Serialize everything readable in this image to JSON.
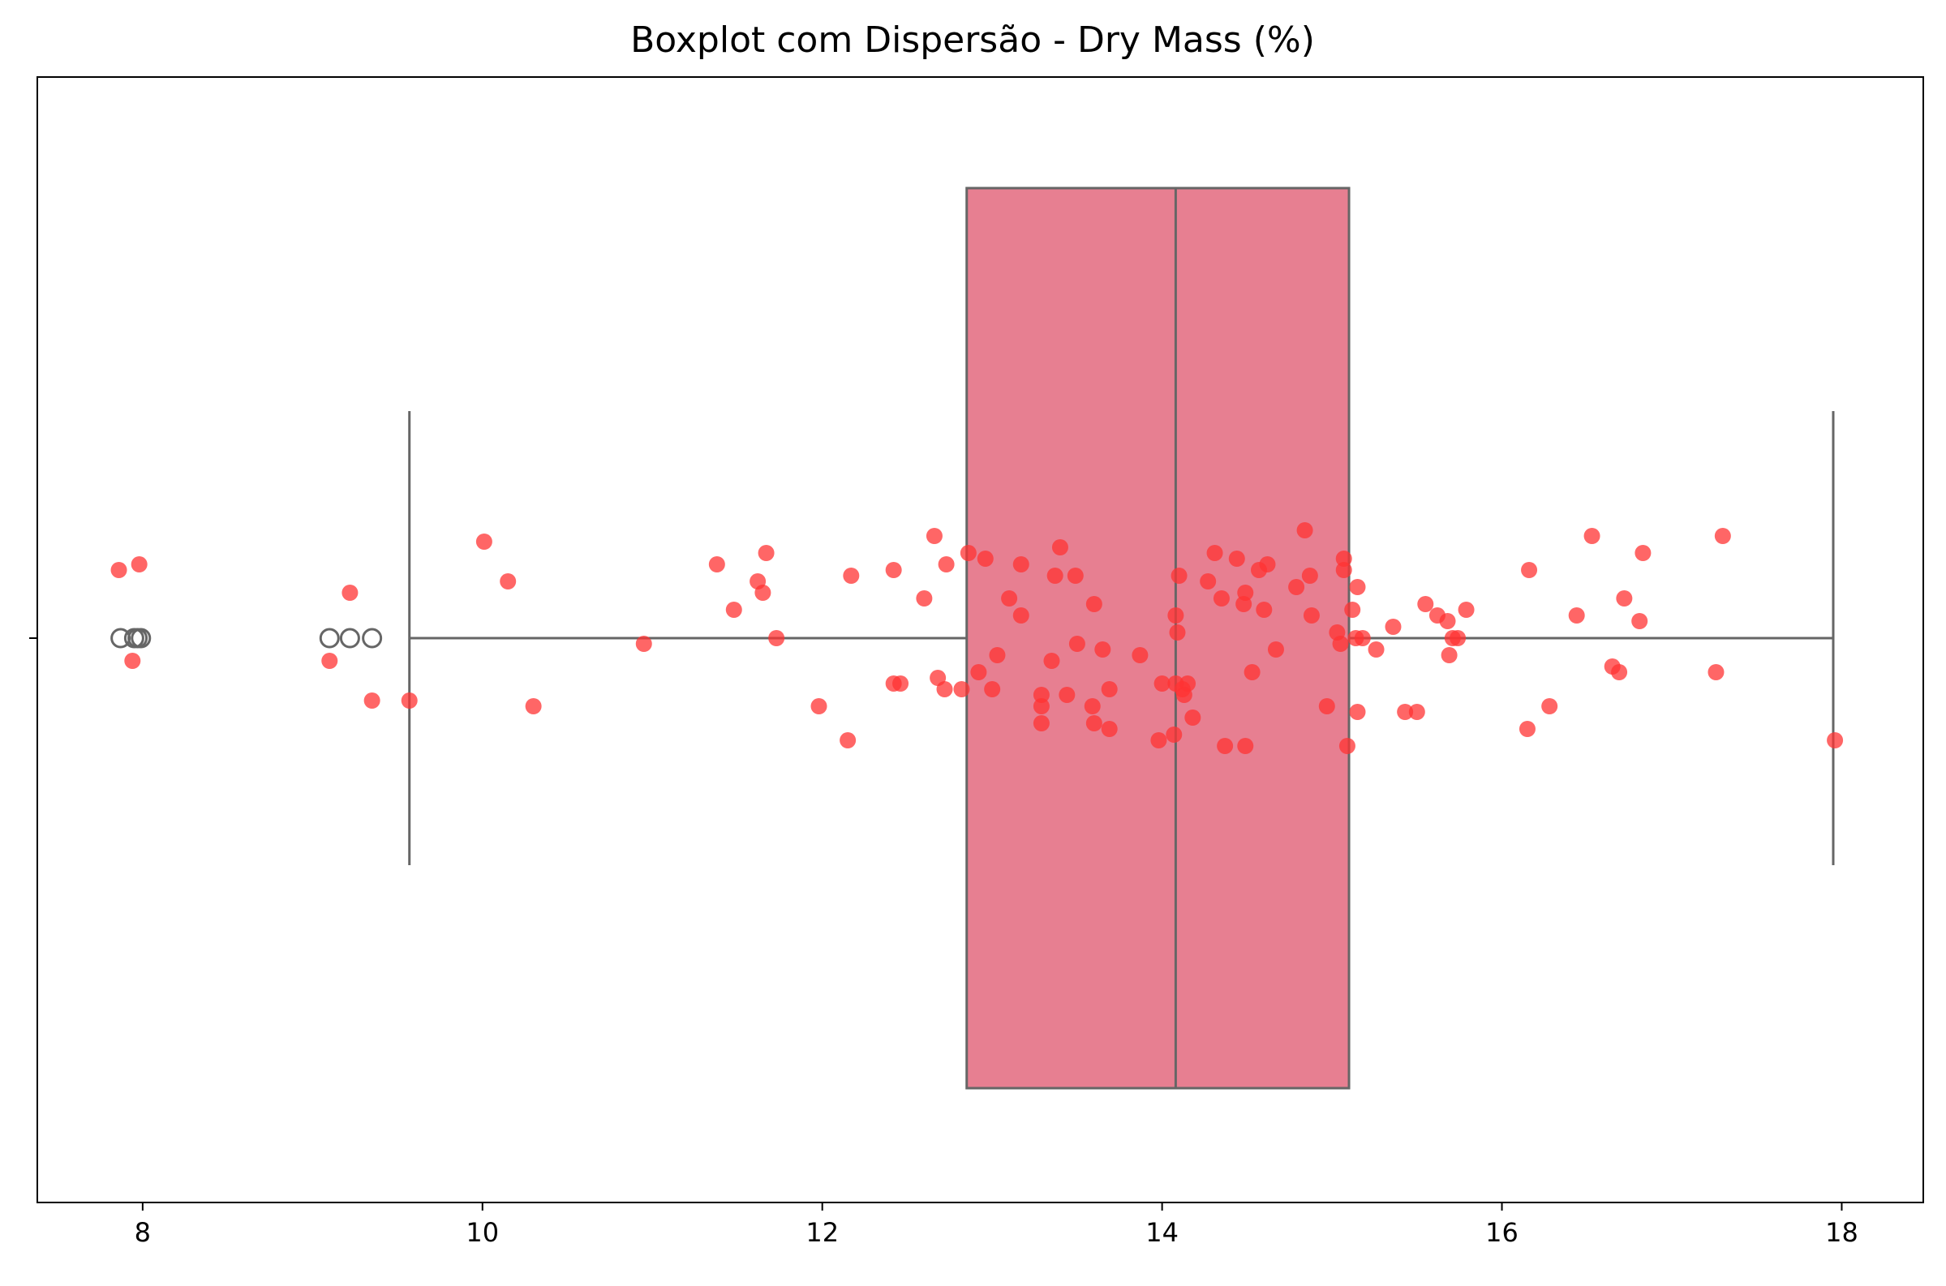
{
  "chart_data": {
    "type": "box",
    "title": "Boxplot com Dispersão - Dry Mass (%)",
    "xlabel": "",
    "ylabel": "",
    "xlim": [
      7.38,
      18.48
    ],
    "xticks": [
      8,
      10,
      12,
      14,
      16,
      18
    ],
    "grid": false,
    "legend": "none",
    "box": {
      "q1": 12.85,
      "median": 14.08,
      "q3": 15.1,
      "whisker_low": 9.57,
      "whisker_high": 17.95,
      "fill_color": "#e77f91",
      "line_color": "#666666"
    },
    "outliers": [
      7.87,
      7.95,
      7.97,
      7.99,
      9.1,
      9.22,
      9.35
    ],
    "points_color": "#ff3333",
    "points": [
      {
        "x": 7.86,
        "jitter": 0.12
      },
      {
        "x": 7.98,
        "jitter": 0.13
      },
      {
        "x": 7.94,
        "jitter": -0.04
      },
      {
        "x": 9.22,
        "jitter": 0.08
      },
      {
        "x": 9.1,
        "jitter": -0.04
      },
      {
        "x": 9.35,
        "jitter": -0.11
      },
      {
        "x": 9.57,
        "jitter": -0.11
      },
      {
        "x": 10.01,
        "jitter": 0.17
      },
      {
        "x": 10.15,
        "jitter": 0.1
      },
      {
        "x": 10.3,
        "jitter": -0.12
      },
      {
        "x": 10.95,
        "jitter": -0.01
      },
      {
        "x": 11.38,
        "jitter": 0.13
      },
      {
        "x": 11.48,
        "jitter": 0.05
      },
      {
        "x": 11.62,
        "jitter": 0.1
      },
      {
        "x": 11.65,
        "jitter": 0.08
      },
      {
        "x": 11.67,
        "jitter": 0.15
      },
      {
        "x": 11.73,
        "jitter": 0.0
      },
      {
        "x": 11.98,
        "jitter": -0.12
      },
      {
        "x": 12.15,
        "jitter": -0.18
      },
      {
        "x": 12.17,
        "jitter": 0.11
      },
      {
        "x": 12.42,
        "jitter": 0.12
      },
      {
        "x": 12.42,
        "jitter": -0.08
      },
      {
        "x": 12.46,
        "jitter": -0.08
      },
      {
        "x": 12.6,
        "jitter": 0.07
      },
      {
        "x": 12.66,
        "jitter": 0.18
      },
      {
        "x": 12.68,
        "jitter": -0.07
      },
      {
        "x": 12.73,
        "jitter": 0.13
      },
      {
        "x": 12.72,
        "jitter": -0.09
      },
      {
        "x": 12.82,
        "jitter": -0.09
      },
      {
        "x": 12.86,
        "jitter": 0.15
      },
      {
        "x": 12.92,
        "jitter": -0.06
      },
      {
        "x": 12.96,
        "jitter": 0.14
      },
      {
        "x": 13.0,
        "jitter": -0.09
      },
      {
        "x": 13.03,
        "jitter": -0.03
      },
      {
        "x": 13.1,
        "jitter": 0.07
      },
      {
        "x": 13.17,
        "jitter": 0.13
      },
      {
        "x": 13.17,
        "jitter": 0.04
      },
      {
        "x": 13.29,
        "jitter": -0.1
      },
      {
        "x": 13.29,
        "jitter": -0.12
      },
      {
        "x": 13.29,
        "jitter": -0.15
      },
      {
        "x": 13.35,
        "jitter": -0.04
      },
      {
        "x": 13.37,
        "jitter": 0.11
      },
      {
        "x": 13.4,
        "jitter": 0.16
      },
      {
        "x": 13.44,
        "jitter": -0.1
      },
      {
        "x": 13.49,
        "jitter": 0.11
      },
      {
        "x": 13.5,
        "jitter": -0.01
      },
      {
        "x": 13.59,
        "jitter": -0.12
      },
      {
        "x": 13.6,
        "jitter": 0.06
      },
      {
        "x": 13.6,
        "jitter": -0.15
      },
      {
        "x": 13.65,
        "jitter": -0.02
      },
      {
        "x": 13.69,
        "jitter": -0.09
      },
      {
        "x": 13.69,
        "jitter": -0.16
      },
      {
        "x": 13.87,
        "jitter": -0.03
      },
      {
        "x": 13.98,
        "jitter": -0.18
      },
      {
        "x": 14.0,
        "jitter": -0.08
      },
      {
        "x": 14.07,
        "jitter": -0.17
      },
      {
        "x": 14.08,
        "jitter": -0.08
      },
      {
        "x": 14.08,
        "jitter": 0.04
      },
      {
        "x": 14.09,
        "jitter": 0.01
      },
      {
        "x": 14.1,
        "jitter": 0.11
      },
      {
        "x": 14.12,
        "jitter": -0.09
      },
      {
        "x": 14.13,
        "jitter": -0.1
      },
      {
        "x": 14.15,
        "jitter": -0.08
      },
      {
        "x": 14.18,
        "jitter": -0.14
      },
      {
        "x": 14.27,
        "jitter": 0.1
      },
      {
        "x": 14.31,
        "jitter": 0.15
      },
      {
        "x": 14.35,
        "jitter": 0.07
      },
      {
        "x": 14.37,
        "jitter": -0.19
      },
      {
        "x": 14.44,
        "jitter": 0.14
      },
      {
        "x": 14.48,
        "jitter": 0.06
      },
      {
        "x": 14.49,
        "jitter": 0.08
      },
      {
        "x": 14.49,
        "jitter": -0.19
      },
      {
        "x": 14.53,
        "jitter": -0.06
      },
      {
        "x": 14.57,
        "jitter": 0.12
      },
      {
        "x": 14.6,
        "jitter": 0.05
      },
      {
        "x": 14.62,
        "jitter": 0.13
      },
      {
        "x": 14.67,
        "jitter": -0.02
      },
      {
        "x": 14.79,
        "jitter": 0.09
      },
      {
        "x": 14.84,
        "jitter": 0.19
      },
      {
        "x": 14.87,
        "jitter": 0.11
      },
      {
        "x": 14.88,
        "jitter": 0.04
      },
      {
        "x": 14.97,
        "jitter": -0.12
      },
      {
        "x": 15.03,
        "jitter": 0.01
      },
      {
        "x": 15.05,
        "jitter": -0.01
      },
      {
        "x": 15.07,
        "jitter": 0.14
      },
      {
        "x": 15.07,
        "jitter": 0.12
      },
      {
        "x": 15.09,
        "jitter": -0.19
      },
      {
        "x": 15.12,
        "jitter": 0.05
      },
      {
        "x": 15.14,
        "jitter": 0.0
      },
      {
        "x": 15.15,
        "jitter": 0.09
      },
      {
        "x": 15.15,
        "jitter": -0.13
      },
      {
        "x": 15.18,
        "jitter": 0.0
      },
      {
        "x": 15.26,
        "jitter": -0.02
      },
      {
        "x": 15.36,
        "jitter": 0.02
      },
      {
        "x": 15.43,
        "jitter": -0.13
      },
      {
        "x": 15.5,
        "jitter": -0.13
      },
      {
        "x": 15.55,
        "jitter": 0.06
      },
      {
        "x": 15.62,
        "jitter": 0.04
      },
      {
        "x": 15.68,
        "jitter": 0.03
      },
      {
        "x": 15.69,
        "jitter": -0.03
      },
      {
        "x": 15.71,
        "jitter": 0.0
      },
      {
        "x": 15.74,
        "jitter": 0.0
      },
      {
        "x": 15.79,
        "jitter": 0.05
      },
      {
        "x": 16.15,
        "jitter": -0.16
      },
      {
        "x": 16.16,
        "jitter": 0.12
      },
      {
        "x": 16.28,
        "jitter": -0.12
      },
      {
        "x": 16.44,
        "jitter": 0.04
      },
      {
        "x": 16.53,
        "jitter": 0.18
      },
      {
        "x": 16.65,
        "jitter": -0.05
      },
      {
        "x": 16.69,
        "jitter": -0.06
      },
      {
        "x": 16.72,
        "jitter": 0.07
      },
      {
        "x": 16.81,
        "jitter": 0.03
      },
      {
        "x": 16.83,
        "jitter": 0.15
      },
      {
        "x": 17.26,
        "jitter": -0.06
      },
      {
        "x": 17.3,
        "jitter": 0.18
      },
      {
        "x": 17.96,
        "jitter": -0.18
      }
    ]
  }
}
